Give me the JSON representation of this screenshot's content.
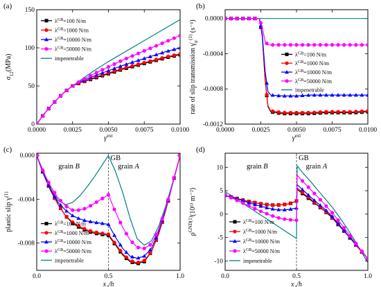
{
  "series_meta": [
    {
      "key": "s100",
      "label_prefix": "λ",
      "label_sup": "GB",
      "label_suffix": "=100 N/m",
      "color": "#000000",
      "marker": "square"
    },
    {
      "key": "s1000",
      "label_prefix": "λ",
      "label_sup": "GB",
      "label_suffix": "=1000 N/m",
      "color": "#ff0000",
      "marker": "circle"
    },
    {
      "key": "s10000",
      "label_prefix": "λ",
      "label_sup": "GB",
      "label_suffix": "=10000 N/m",
      "color": "#0000ff",
      "marker": "triangle"
    },
    {
      "key": "s50000",
      "label_prefix": "λ",
      "label_sup": "GB",
      "label_suffix": "=50000 N/m",
      "color": "#ff00ff",
      "marker": "circle"
    },
    {
      "key": "imp",
      "label_prefix": "impenetrable",
      "label_sup": "",
      "label_suffix": "",
      "color": "#008080",
      "marker": "none"
    }
  ],
  "chart_data": [
    {
      "panel": "(a)",
      "type": "line",
      "ylabel_main": "σ",
      "ylabel_sub": "12",
      "ylabel_unit": "(MPa)",
      "xlabel_main": "γ",
      "xlabel_sup": "ext",
      "xlim": [
        0,
        0.01
      ],
      "ylim": [
        0,
        150
      ],
      "xticks": [
        "0.0000",
        "0.0025",
        "0.0050",
        "0.0075",
        "0.0100"
      ],
      "xtick_values": [
        0,
        0.0025,
        0.005,
        0.0075,
        0.01
      ],
      "yticks": [
        "0",
        "50",
        "100",
        "150"
      ],
      "ytick_values": [
        0,
        50,
        100,
        150
      ],
      "legend_position": "top-left",
      "series": [
        {
          "name": "λGB=100 N/m",
          "key": "s100",
          "x": [
            0,
            0.0005,
            0.001,
            0.0015,
            0.002,
            0.0025,
            0.003,
            0.004,
            0.005,
            0.006,
            0.007,
            0.008,
            0.009,
            0.01
          ],
          "y": [
            0,
            13,
            24,
            34,
            43,
            50,
            54,
            60,
            66,
            72,
            77,
            82,
            87,
            91
          ]
        },
        {
          "name": "λGB=1000 N/m",
          "key": "s1000",
          "x": [
            0,
            0.0005,
            0.001,
            0.0015,
            0.002,
            0.0025,
            0.003,
            0.004,
            0.005,
            0.006,
            0.007,
            0.008,
            0.009,
            0.01
          ],
          "y": [
            0,
            13,
            24,
            34,
            43,
            50,
            54,
            61,
            67,
            73,
            78,
            83,
            88,
            92
          ]
        },
        {
          "name": "λGB=10000 N/m",
          "key": "s10000",
          "x": [
            0,
            0.0005,
            0.001,
            0.0015,
            0.002,
            0.0025,
            0.003,
            0.004,
            0.005,
            0.006,
            0.007,
            0.008,
            0.009,
            0.01
          ],
          "y": [
            0,
            13,
            24,
            34,
            43,
            50,
            55,
            63,
            70,
            77,
            83,
            89,
            95,
            100
          ]
        },
        {
          "name": "λGB=50000 N/m",
          "key": "s50000",
          "x": [
            0,
            0.0005,
            0.001,
            0.0015,
            0.002,
            0.0025,
            0.003,
            0.004,
            0.005,
            0.006,
            0.007,
            0.008,
            0.009,
            0.01
          ],
          "y": [
            0,
            13,
            24,
            34,
            43,
            50,
            56,
            66,
            75,
            84,
            92,
            100,
            108,
            116
          ]
        },
        {
          "name": "impenetrable",
          "key": "imp",
          "x": [
            0,
            0.0005,
            0.001,
            0.0015,
            0.002,
            0.0025,
            0.003,
            0.004,
            0.005,
            0.006,
            0.007,
            0.008,
            0.009,
            0.01
          ],
          "y": [
            0,
            13,
            24,
            34,
            43,
            50,
            57,
            70,
            82,
            93,
            104,
            115,
            126,
            137
          ]
        }
      ]
    },
    {
      "panel": "(b)",
      "type": "line",
      "ylabel_text": "rate of slip transmission ",
      "ylabel_main": "γ̇",
      "ylabel_sub": "tr",
      "ylabel_sup": "(1)",
      "ylabel_unit": " (s⁻¹)",
      "xlabel_main": "γ",
      "xlabel_sup": "ext",
      "xlim": [
        0,
        0.01
      ],
      "ylim": [
        -0.0012,
        0.0001
      ],
      "xticks": [
        "0.0000",
        "0.0025",
        "0.0050",
        "0.0075",
        "0.0100"
      ],
      "xtick_values": [
        0,
        0.0025,
        0.005,
        0.0075,
        0.01
      ],
      "yticks": [
        "0.0000",
        "-0.0004",
        "-0.0008",
        "-0.0012"
      ],
      "ytick_values": [
        0,
        -0.0004,
        -0.0008,
        -0.0012
      ],
      "legend_position": "center-right",
      "series": [
        {
          "name": "λGB=100 N/m",
          "key": "s100",
          "x": [
            0,
            0.001,
            0.002,
            0.0024,
            0.0026,
            0.0028,
            0.003,
            0.0032,
            0.004,
            0.005,
            0.006,
            0.007,
            0.008,
            0.009,
            0.01
          ],
          "y": [
            0,
            0,
            0,
            0,
            -0.0002,
            -0.0007,
            -0.001,
            -0.00106,
            -0.00108,
            -0.00108,
            -0.00108,
            -0.00107,
            -0.00107,
            -0.00107,
            -0.00106
          ]
        },
        {
          "name": "λGB=1000 N/m",
          "key": "s1000",
          "x": [
            0,
            0.001,
            0.002,
            0.0024,
            0.0026,
            0.0028,
            0.003,
            0.0032,
            0.004,
            0.005,
            0.006,
            0.007,
            0.008,
            0.009,
            0.01
          ],
          "y": [
            0,
            0,
            0,
            0,
            -0.0002,
            -0.00069,
            -0.00099,
            -0.00105,
            -0.00107,
            -0.00107,
            -0.00107,
            -0.00106,
            -0.00106,
            -0.00106,
            -0.00105
          ]
        },
        {
          "name": "λGB=10000 N/m",
          "key": "s10000",
          "x": [
            0,
            0.001,
            0.002,
            0.0024,
            0.0026,
            0.0028,
            0.003,
            0.0032,
            0.004,
            0.005,
            0.006,
            0.007,
            0.008,
            0.009,
            0.01
          ],
          "y": [
            0,
            0,
            0,
            0,
            -0.00018,
            -0.0006,
            -0.00083,
            -0.00087,
            -0.00088,
            -0.00088,
            -0.00087,
            -0.00087,
            -0.00087,
            -0.00087,
            -0.00087
          ]
        },
        {
          "name": "λGB=50000 N/m",
          "key": "s50000",
          "x": [
            0,
            0.001,
            0.002,
            0.0024,
            0.0026,
            0.0028,
            0.003,
            0.0032,
            0.004,
            0.005,
            0.006,
            0.007,
            0.008,
            0.009,
            0.01
          ],
          "y": [
            0,
            0,
            0,
            0,
            -0.0001,
            -0.00026,
            -0.0003,
            -0.0003,
            -0.0003,
            -0.0003,
            -0.0003,
            -0.0003,
            -0.0003,
            -0.0003,
            -0.0003
          ]
        },
        {
          "name": "impenetrable",
          "key": "imp",
          "x": [
            0,
            0.002,
            0.004,
            0.006,
            0.008,
            0.01
          ],
          "y": [
            0,
            0,
            0,
            0,
            0,
            0
          ]
        }
      ]
    },
    {
      "panel": "(c)",
      "type": "line",
      "ylabel_text": "plastic slip ",
      "ylabel_main": "γ",
      "ylabel_sup": "(1)",
      "xlabel_main": "x",
      "xlabel_sub": "2",
      "xlabel_suffix": "/h",
      "xlim": [
        0,
        1
      ],
      "ylim": [
        -0.0105,
        0.0002
      ],
      "xticks": [
        "0.0",
        "0.5",
        "1.0"
      ],
      "xtick_values": [
        0,
        0.5,
        1
      ],
      "yticks": [
        "0.000",
        "-0.004",
        "-0.008"
      ],
      "ytick_values": [
        0,
        -0.004,
        -0.008
      ],
      "gb_label": "GB",
      "region_left": "grain B",
      "region_right": "grain A",
      "region_word": "grain",
      "region_left_letter": "B",
      "region_right_letter": "A",
      "gb_x": 0.5,
      "legend_position": "bottom-left",
      "series": [
        {
          "name": "λGB=100 N/m",
          "key": "s100",
          "x": [
            0,
            0.05,
            0.1,
            0.15,
            0.2,
            0.25,
            0.3,
            0.35,
            0.4,
            0.45,
            0.5,
            0.55,
            0.6,
            0.65,
            0.7,
            0.75,
            0.8,
            0.85,
            0.9,
            0.95,
            1.0
          ],
          "y": [
            0,
            -0.0018,
            -0.0033,
            -0.0045,
            -0.0055,
            -0.0062,
            -0.0066,
            -0.0069,
            -0.0071,
            -0.0072,
            -0.0073,
            -0.0082,
            -0.0091,
            -0.0097,
            -0.0099,
            -0.0097,
            -0.0088,
            -0.0072,
            -0.005,
            -0.0025,
            0
          ]
        },
        {
          "name": "λGB=1000 N/m",
          "key": "s1000",
          "x": [
            0,
            0.05,
            0.1,
            0.15,
            0.2,
            0.25,
            0.3,
            0.35,
            0.4,
            0.45,
            0.5,
            0.55,
            0.6,
            0.65,
            0.7,
            0.75,
            0.8,
            0.85,
            0.9,
            0.95,
            1.0
          ],
          "y": [
            0,
            -0.0018,
            -0.0033,
            -0.0045,
            -0.0055,
            -0.0061,
            -0.0065,
            -0.0068,
            -0.007,
            -0.0071,
            -0.0072,
            -0.0081,
            -0.009,
            -0.0096,
            -0.0098,
            -0.0096,
            -0.0088,
            -0.0072,
            -0.005,
            -0.0025,
            0
          ]
        },
        {
          "name": "λGB=10000 N/m",
          "key": "s10000",
          "x": [
            0,
            0.05,
            0.1,
            0.15,
            0.2,
            0.25,
            0.3,
            0.35,
            0.4,
            0.45,
            0.5,
            0.55,
            0.6,
            0.65,
            0.7,
            0.75,
            0.8,
            0.85,
            0.9,
            0.95,
            1.0
          ],
          "y": [
            0,
            -0.0018,
            -0.0032,
            -0.0043,
            -0.005,
            -0.0055,
            -0.0058,
            -0.006,
            -0.0061,
            -0.0062,
            -0.0063,
            -0.0075,
            -0.0085,
            -0.0092,
            -0.0094,
            -0.0092,
            -0.0085,
            -0.007,
            -0.0049,
            -0.0025,
            0
          ]
        },
        {
          "name": "λGB=50000 N/m",
          "key": "s50000",
          "x": [
            0,
            0.05,
            0.1,
            0.15,
            0.2,
            0.25,
            0.3,
            0.35,
            0.4,
            0.45,
            0.5,
            0.55,
            0.6,
            0.65,
            0.7,
            0.75,
            0.8,
            0.85,
            0.9,
            0.95,
            1.0
          ],
          "y": [
            0,
            -0.0016,
            -0.0029,
            -0.0039,
            -0.0046,
            -0.005,
            -0.005,
            -0.0048,
            -0.0044,
            -0.004,
            -0.0036,
            -0.0052,
            -0.0066,
            -0.0077,
            -0.0084,
            -0.0085,
            -0.0081,
            -0.0068,
            -0.0048,
            -0.0025,
            0
          ]
        },
        {
          "name": "impenetrable",
          "key": "imp",
          "x": [
            0,
            0.05,
            0.1,
            0.15,
            0.2,
            0.25,
            0.3,
            0.35,
            0.4,
            0.45,
            0.5,
            0.55,
            0.6,
            0.65,
            0.7,
            0.75,
            0.8,
            0.85,
            0.9,
            0.95,
            1.0
          ],
          "y": [
            0,
            -0.0016,
            -0.0031,
            -0.0041,
            -0.0045,
            -0.0043,
            -0.0037,
            -0.0029,
            -0.002,
            -0.001,
            0,
            -0.0015,
            -0.0034,
            -0.0057,
            -0.0076,
            -0.0082,
            -0.0078,
            -0.0065,
            -0.0046,
            -0.0024,
            0
          ]
        }
      ]
    },
    {
      "panel": "(d)",
      "type": "line",
      "ylabel_main": "ρ",
      "ylabel_sup": "GND(1)",
      "ylabel_unit": "(10¹³ m⁻²)",
      "xlabel_main": "x",
      "xlabel_sub": "2",
      "xlabel_suffix": "/h",
      "xlim": [
        0,
        1
      ],
      "ylim": [
        -12,
        13
      ],
      "xticks": [
        "0.0",
        "0.5",
        "1.0"
      ],
      "xtick_values": [
        0,
        0.5,
        1
      ],
      "yticks": [
        "10",
        "5",
        "0",
        "-5",
        "-10"
      ],
      "ytick_values": [
        10,
        5,
        0,
        -5,
        -10
      ],
      "gb_label": "GB",
      "region_left": "grain B",
      "region_right": "grain A",
      "region_word": "grain",
      "region_left_letter": "B",
      "region_right_letter": "A",
      "gb_x": 0.5,
      "legend_position": "bottom-left",
      "series": [
        {
          "name": "λGB=100 N/m",
          "key": "s100",
          "x": [
            0,
            0.05,
            0.1,
            0.15,
            0.2,
            0.25,
            0.3,
            0.35,
            0.4,
            0.45,
            0.5,
            0.505,
            0.55,
            0.6,
            0.65,
            0.7,
            0.75,
            0.8,
            0.85,
            0.9,
            0.95,
            1.0
          ],
          "y": [
            4,
            3.6,
            3.2,
            2.8,
            2.5,
            2.2,
            2.0,
            1.9,
            2.0,
            2.2,
            2.8,
            5.3,
            4.2,
            3.0,
            1.8,
            0.6,
            -0.8,
            -2.5,
            -4.2,
            -6,
            -7.8,
            -9.5
          ]
        },
        {
          "name": "λGB=1000 N/m",
          "key": "s1000",
          "x": [
            0,
            0.05,
            0.1,
            0.15,
            0.2,
            0.25,
            0.3,
            0.35,
            0.4,
            0.45,
            0.5,
            0.505,
            0.55,
            0.6,
            0.65,
            0.7,
            0.75,
            0.8,
            0.85,
            0.9,
            0.95,
            1.0
          ],
          "y": [
            4,
            3.6,
            3.2,
            2.8,
            2.5,
            2.2,
            2.0,
            1.9,
            2.0,
            2.2,
            2.8,
            5.6,
            4.4,
            3.2,
            1.9,
            0.7,
            -0.7,
            -2.4,
            -4.2,
            -6,
            -7.8,
            -9.5
          ]
        },
        {
          "name": "λGB=10000 N/m",
          "key": "s10000",
          "x": [
            0,
            0.05,
            0.1,
            0.15,
            0.2,
            0.25,
            0.3,
            0.35,
            0.4,
            0.45,
            0.5,
            0.505,
            0.55,
            0.6,
            0.65,
            0.7,
            0.75,
            0.8,
            0.85,
            0.9,
            0.95,
            1.0
          ],
          "y": [
            4,
            3.6,
            3.1,
            2.6,
            2.1,
            1.7,
            1.3,
            1.0,
            0.9,
            1.0,
            1.3,
            6.3,
            5.0,
            3.6,
            2.3,
            1.0,
            -0.5,
            -2.3,
            -4.1,
            -5.9,
            -7.7,
            -9.5
          ]
        },
        {
          "name": "λGB=50000 N/m",
          "key": "s50000",
          "x": [
            0,
            0.05,
            0.1,
            0.15,
            0.2,
            0.25,
            0.3,
            0.35,
            0.4,
            0.45,
            0.5,
            0.505,
            0.55,
            0.6,
            0.65,
            0.7,
            0.75,
            0.8,
            0.85,
            0.9,
            0.95,
            1.0
          ],
          "y": [
            4,
            3.4,
            2.7,
            2.0,
            1.3,
            0.6,
            0,
            -0.6,
            -1.0,
            -1.2,
            -1.3,
            8.3,
            6.8,
            5.2,
            3.6,
            2.0,
            0.3,
            -1.6,
            -3.6,
            -5.6,
            -7.6,
            -9.5
          ]
        },
        {
          "name": "impenetrable",
          "key": "imp",
          "x": [
            0,
            0.05,
            0.1,
            0.15,
            0.2,
            0.25,
            0.3,
            0.35,
            0.4,
            0.45,
            0.5,
            0.505,
            0.55,
            0.6,
            0.65,
            0.7,
            0.75,
            0.8,
            0.85,
            0.9,
            0.95,
            1.0
          ],
          "y": [
            4.8,
            3.8,
            2.8,
            1.8,
            0.8,
            -0.2,
            -1.2,
            -2.2,
            -3.2,
            -4.2,
            -5.2,
            10.3,
            8.6,
            6.9,
            5.1,
            3.3,
            1.5,
            -0.6,
            -2.8,
            -5.2,
            -7.8,
            -10.4
          ]
        }
      ]
    }
  ]
}
